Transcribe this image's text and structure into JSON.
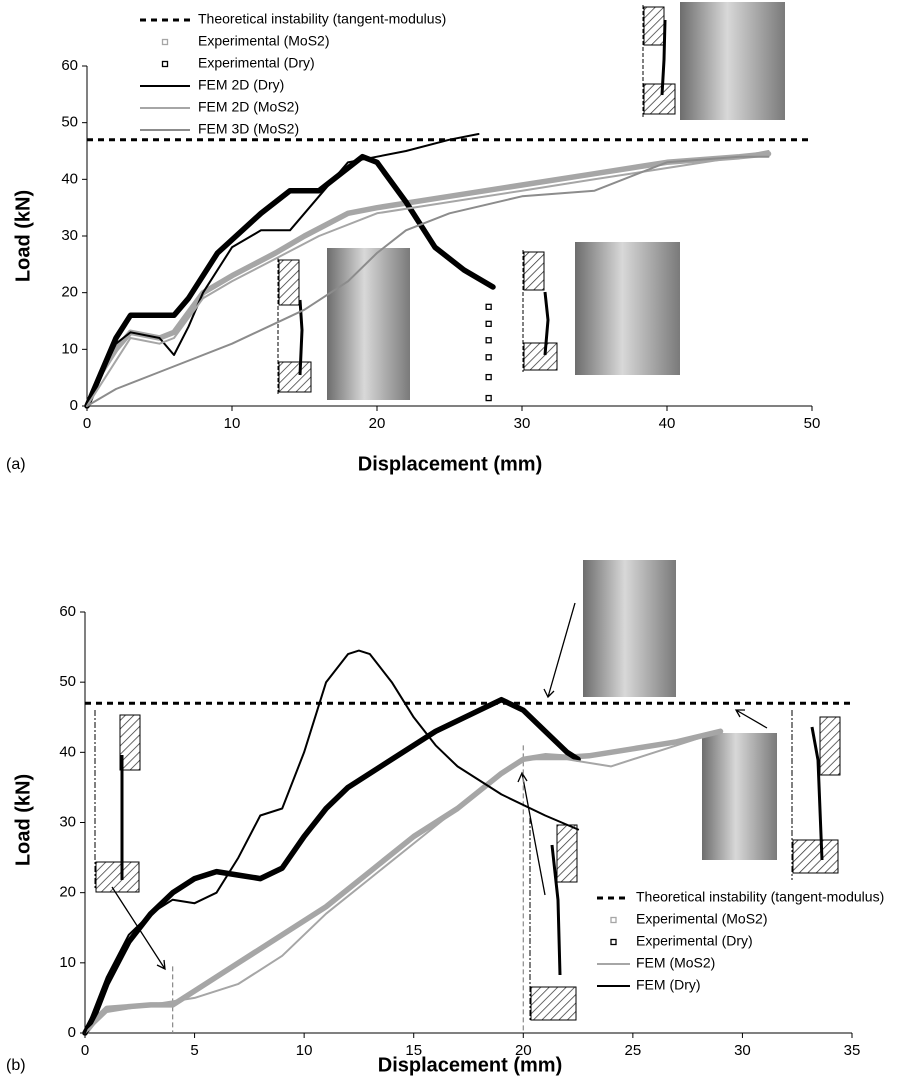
{
  "chart_data": [
    {
      "type": "line",
      "panel_label": "(a)",
      "x_label": "Displacement (mm)",
      "y_label": "Load (kN)",
      "xlim": [
        0,
        50
      ],
      "xticks": [
        0,
        10,
        20,
        30,
        40,
        50
      ],
      "ylim": [
        0,
        60
      ],
      "yticks": [
        0,
        10,
        20,
        30,
        40,
        50,
        60
      ],
      "grid": false,
      "legend": "top",
      "series": [
        {
          "name": "Theoretical instability (tangent-modulus)",
          "color": "#000000",
          "style": "dashed",
          "x": [
            0,
            50
          ],
          "values": [
            47,
            47
          ]
        },
        {
          "name": "Experimental (MoS2)",
          "color": "#a6a6a6",
          "style": "markers",
          "x": [
            0,
            1,
            2,
            3,
            5,
            6,
            8,
            10,
            13,
            15,
            18,
            20,
            25,
            30,
            35,
            40,
            45,
            47
          ],
          "values": [
            0,
            6,
            10,
            13,
            12,
            13,
            20,
            23,
            27,
            30,
            34,
            35,
            37,
            39,
            41,
            43,
            44,
            44.5
          ]
        },
        {
          "name": "Experimental (Dry)",
          "color": "#000000",
          "style": "markers",
          "x": [
            0,
            1,
            2,
            3,
            6,
            7,
            9,
            12,
            14,
            16,
            19,
            20,
            22,
            24,
            26,
            28,
            null,
            27.7,
            null,
            27.7,
            null,
            27.7,
            null,
            27.7,
            null,
            27.7,
            null,
            27.7
          ],
          "values": [
            0,
            6,
            12,
            16,
            16,
            19,
            27,
            34,
            38,
            38,
            44,
            43,
            36,
            28,
            24,
            21,
            null,
            17.5,
            null,
            14.5,
            null,
            11.6,
            null,
            8.6,
            null,
            5.1,
            null,
            1.4
          ]
        },
        {
          "name": "FEM 2D (Dry)",
          "color": "#000000",
          "style": "line",
          "x": [
            0,
            2,
            3,
            5,
            6,
            7,
            8,
            10,
            12,
            14,
            16,
            18,
            20,
            22,
            25,
            27
          ],
          "values": [
            0,
            11,
            13,
            12,
            9,
            14,
            20,
            28,
            31,
            31,
            37,
            43,
            44,
            45,
            47,
            48
          ]
        },
        {
          "name": "FEM 2D (MoS2)",
          "color": "#a6a6a6",
          "style": "line",
          "x": [
            0,
            3,
            5,
            6,
            8,
            10,
            13,
            16,
            20,
            25,
            30,
            35,
            40,
            45,
            47
          ],
          "values": [
            0,
            12,
            11,
            12,
            19,
            22,
            26,
            30,
            34,
            36,
            38,
            40,
            42,
            44,
            45
          ]
        },
        {
          "name": "FEM 3D (MoS2)",
          "color": "#8c8c8c",
          "style": "line",
          "x": [
            0,
            2,
            5,
            10,
            15,
            18,
            20,
            22,
            25,
            30,
            35,
            40,
            45,
            47
          ],
          "values": [
            0,
            3,
            6,
            11,
            17,
            22,
            27,
            31,
            34,
            37,
            38,
            43,
            44,
            44
          ]
        }
      ]
    },
    {
      "type": "line",
      "panel_label": "(b)",
      "x_label": "Displacement (mm)",
      "y_label": "Load (kN)",
      "xlim": [
        0,
        35
      ],
      "xticks": [
        0,
        5,
        10,
        15,
        20,
        25,
        30,
        35
      ],
      "ylim": [
        0,
        60
      ],
      "yticks": [
        0,
        10,
        20,
        30,
        40,
        50,
        60
      ],
      "grid": false,
      "legend": "bottom-right",
      "reference_lines": [
        {
          "x": 4,
          "top": 9.5
        },
        {
          "x": 20,
          "top": 41
        }
      ],
      "series": [
        {
          "name": "Theoretical instability (tangent-modulus)",
          "color": "#000000",
          "style": "dashed",
          "x": [
            0,
            35
          ],
          "values": [
            47,
            47
          ]
        },
        {
          "name": "Experimental (MoS2)",
          "color": "#a6a6a6",
          "style": "markers",
          "x": [
            0,
            0.5,
            1,
            3,
            4,
            5,
            7,
            9,
            11,
            13,
            15,
            17,
            19,
            20,
            21,
            22,
            23,
            25,
            27,
            29
          ],
          "values": [
            0,
            2,
            3.5,
            4,
            4,
            6,
            10,
            14,
            18,
            23,
            28,
            32,
            37,
            39,
            39.5,
            39.3,
            39.5,
            40.5,
            41.5,
            43
          ]
        },
        {
          "name": "Experimental (Dry)",
          "color": "#000000",
          "style": "markers",
          "x": [
            0,
            0.5,
            1,
            2,
            3,
            4,
            5,
            6,
            7,
            8,
            9,
            10,
            11,
            12,
            14,
            16,
            18,
            19,
            20,
            21,
            22,
            22.5
          ],
          "values": [
            0,
            3,
            7,
            13,
            17,
            20,
            22,
            23,
            22.5,
            22,
            23.5,
            28,
            32,
            35,
            39,
            43,
            46,
            47.5,
            46,
            43,
            40,
            39
          ]
        },
        {
          "name": "FEM (MoS2)",
          "color": "#a6a6a6",
          "style": "line",
          "x": [
            0,
            1,
            3,
            5,
            7,
            9,
            11,
            13,
            15,
            17,
            19,
            20,
            22,
            24,
            26,
            29
          ],
          "values": [
            0,
            3,
            4,
            5,
            7,
            11,
            17,
            22,
            27,
            32,
            37,
            39,
            39,
            38,
            40,
            43
          ]
        },
        {
          "name": "FEM (Dry)",
          "color": "#000000",
          "style": "line",
          "x": [
            0,
            1,
            2,
            3,
            4,
            5,
            6,
            7,
            8,
            9,
            10,
            11,
            12,
            12.5,
            13,
            14,
            15,
            16,
            17,
            19,
            21,
            22.5
          ],
          "values": [
            0,
            8,
            14,
            17,
            19,
            18.5,
            20,
            25,
            31,
            32,
            40,
            50,
            54,
            54.5,
            54,
            50,
            45,
            41,
            38,
            34,
            31,
            29
          ]
        }
      ]
    }
  ]
}
